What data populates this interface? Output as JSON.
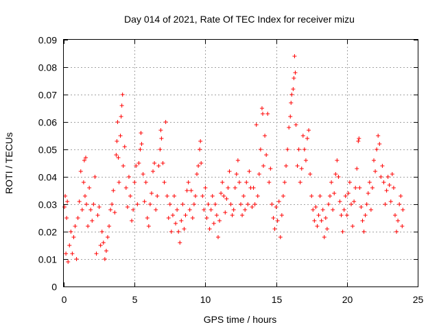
{
  "chart_data": {
    "type": "scatter",
    "title": "Day 014 of 2021, Rate Of TEC Index for receiver mizu",
    "xlabel": "GPS time / hours",
    "ylabel": "ROTI / TECUs",
    "xlim": [
      0,
      25
    ],
    "ylim": [
      0,
      0.09
    ],
    "xticks": [
      0,
      5,
      10,
      15,
      20,
      25
    ],
    "xtick_labels": [
      "0",
      "5",
      "10",
      "15",
      "20",
      "25"
    ],
    "yticks": [
      0,
      0.01,
      0.02,
      0.03,
      0.04,
      0.05,
      0.06,
      0.07,
      0.08,
      0.09
    ],
    "ytick_labels": [
      "0",
      "0.01",
      "0.02",
      "0.03",
      "0.04",
      "0.05",
      "0.06",
      "0.07",
      "0.08",
      "0.09"
    ],
    "grid": true,
    "marker": "plus",
    "color": "#ff0000",
    "series": [
      {
        "points": [
          [
            0.05,
            0.029
          ],
          [
            0.1,
            0.033
          ],
          [
            0.15,
            0.012
          ],
          [
            0.2,
            0.025
          ],
          [
            0.25,
            0.031
          ],
          [
            0.3,
            0.009
          ],
          [
            0.4,
            0.015
          ],
          [
            0.5,
            0.02
          ],
          [
            0.6,
            0.012
          ],
          [
            0.7,
            0.018
          ],
          [
            0.8,
            0.022
          ],
          [
            0.9,
            0.01
          ],
          [
            1.0,
            0.025
          ],
          [
            1.1,
            0.031
          ],
          [
            1.2,
            0.042
          ],
          [
            1.3,
            0.028
          ],
          [
            1.4,
            0.038
          ],
          [
            1.45,
            0.046
          ],
          [
            1.5,
            0.033
          ],
          [
            1.55,
            0.047
          ],
          [
            1.6,
            0.03
          ],
          [
            1.7,
            0.022
          ],
          [
            1.8,
            0.036
          ],
          [
            1.9,
            0.028
          ],
          [
            2.0,
            0.024
          ],
          [
            2.1,
            0.03
          ],
          [
            2.2,
            0.04
          ],
          [
            2.3,
            0.012
          ],
          [
            2.4,
            0.026
          ],
          [
            2.5,
            0.029
          ],
          [
            2.6,
            0.015
          ],
          [
            2.7,
            0.02
          ],
          [
            2.8,
            0.016
          ],
          [
            2.9,
            0.01
          ],
          [
            3.0,
            0.013
          ],
          [
            3.1,
            0.018
          ],
          [
            3.2,
            0.022
          ],
          [
            3.3,
            0.028
          ],
          [
            3.4,
            0.03
          ],
          [
            3.5,
            0.035
          ],
          [
            3.6,
            0.027
          ],
          [
            3.7,
            0.048
          ],
          [
            3.75,
            0.053
          ],
          [
            3.8,
            0.06
          ],
          [
            3.85,
            0.047
          ],
          [
            3.9,
            0.038
          ],
          [
            4.0,
            0.055
          ],
          [
            4.05,
            0.062
          ],
          [
            4.1,
            0.066
          ],
          [
            4.15,
            0.07
          ],
          [
            4.2,
            0.044
          ],
          [
            4.3,
            0.051
          ],
          [
            4.4,
            0.036
          ],
          [
            4.5,
            0.029
          ],
          [
            4.6,
            0.04
          ],
          [
            4.7,
            0.033
          ],
          [
            4.8,
            0.024
          ],
          [
            4.9,
            0.028
          ],
          [
            5.0,
            0.038
          ],
          [
            5.1,
            0.044
          ],
          [
            5.2,
            0.03
          ],
          [
            5.3,
            0.045
          ],
          [
            5.4,
            0.05
          ],
          [
            5.45,
            0.056
          ],
          [
            5.5,
            0.052
          ],
          [
            5.6,
            0.041
          ],
          [
            5.7,
            0.031
          ],
          [
            5.8,
            0.038
          ],
          [
            5.9,
            0.025
          ],
          [
            6.0,
            0.022
          ],
          [
            6.1,
            0.03
          ],
          [
            6.2,
            0.034
          ],
          [
            6.3,
            0.042
          ],
          [
            6.4,
            0.045
          ],
          [
            6.5,
            0.028
          ],
          [
            6.6,
            0.033
          ],
          [
            6.7,
            0.044
          ],
          [
            6.8,
            0.05
          ],
          [
            6.85,
            0.057
          ],
          [
            6.9,
            0.054
          ],
          [
            7.0,
            0.045
          ],
          [
            7.1,
            0.038
          ],
          [
            7.2,
            0.06
          ],
          [
            7.3,
            0.033
          ],
          [
            7.4,
            0.025
          ],
          [
            7.5,
            0.03
          ],
          [
            7.6,
            0.02
          ],
          [
            7.7,
            0.026
          ],
          [
            7.8,
            0.033
          ],
          [
            7.9,
            0.023
          ],
          [
            8.0,
            0.028
          ],
          [
            8.1,
            0.02
          ],
          [
            8.2,
            0.016
          ],
          [
            8.3,
            0.024
          ],
          [
            8.4,
            0.03
          ],
          [
            8.5,
            0.021
          ],
          [
            8.6,
            0.026
          ],
          [
            8.7,
            0.035
          ],
          [
            8.8,
            0.038
          ],
          [
            8.9,
            0.028
          ],
          [
            9.0,
            0.035
          ],
          [
            9.1,
            0.025
          ],
          [
            9.2,
            0.03
          ],
          [
            9.3,
            0.033
          ],
          [
            9.4,
            0.041
          ],
          [
            9.5,
            0.044
          ],
          [
            9.6,
            0.05
          ],
          [
            9.65,
            0.053
          ],
          [
            9.7,
            0.045
          ],
          [
            9.8,
            0.033
          ],
          [
            9.9,
            0.028
          ],
          [
            10.0,
            0.036
          ],
          [
            10.1,
            0.025
          ],
          [
            10.2,
            0.03
          ],
          [
            10.3,
            0.021
          ],
          [
            10.4,
            0.028
          ],
          [
            10.5,
            0.033
          ],
          [
            10.6,
            0.023
          ],
          [
            10.7,
            0.03
          ],
          [
            10.8,
            0.026
          ],
          [
            10.9,
            0.018
          ],
          [
            11.0,
            0.024
          ],
          [
            11.1,
            0.034
          ],
          [
            11.2,
            0.038
          ],
          [
            11.3,
            0.033
          ],
          [
            11.4,
            0.027
          ],
          [
            11.5,
            0.032
          ],
          [
            11.6,
            0.036
          ],
          [
            11.7,
            0.042
          ],
          [
            11.8,
            0.03
          ],
          [
            11.9,
            0.026
          ],
          [
            12.0,
            0.028
          ],
          [
            12.1,
            0.036
          ],
          [
            12.2,
            0.041
          ],
          [
            12.3,
            0.046
          ],
          [
            12.4,
            0.038
          ],
          [
            12.5,
            0.03
          ],
          [
            12.6,
            0.026
          ],
          [
            12.7,
            0.033
          ],
          [
            12.8,
            0.028
          ],
          [
            12.9,
            0.038
          ],
          [
            13.0,
            0.03
          ],
          [
            13.1,
            0.042
          ],
          [
            13.2,
            0.036
          ],
          [
            13.3,
            0.029
          ],
          [
            13.4,
            0.036
          ],
          [
            13.5,
            0.03
          ],
          [
            13.6,
            0.059
          ],
          [
            13.7,
            0.033
          ],
          [
            13.8,
            0.041
          ],
          [
            13.9,
            0.05
          ],
          [
            14.0,
            0.065
          ],
          [
            14.05,
            0.063
          ],
          [
            14.1,
            0.044
          ],
          [
            14.2,
            0.055
          ],
          [
            14.3,
            0.048
          ],
          [
            14.4,
            0.063
          ],
          [
            14.5,
            0.038
          ],
          [
            14.6,
            0.043
          ],
          [
            14.7,
            0.03
          ],
          [
            14.8,
            0.025
          ],
          [
            14.9,
            0.021
          ],
          [
            15.0,
            0.029
          ],
          [
            15.1,
            0.024
          ],
          [
            15.2,
            0.031
          ],
          [
            15.3,
            0.018
          ],
          [
            15.4,
            0.026
          ],
          [
            15.5,
            0.033
          ],
          [
            15.6,
            0.038
          ],
          [
            15.7,
            0.044
          ],
          [
            15.8,
            0.05
          ],
          [
            15.9,
            0.058
          ],
          [
            16.0,
            0.062
          ],
          [
            16.05,
            0.067
          ],
          [
            16.1,
            0.07
          ],
          [
            16.2,
            0.072
          ],
          [
            16.25,
            0.076
          ],
          [
            16.3,
            0.084
          ],
          [
            16.35,
            0.078
          ],
          [
            16.4,
            0.059
          ],
          [
            16.5,
            0.044
          ],
          [
            16.6,
            0.05
          ],
          [
            16.7,
            0.038
          ],
          [
            16.8,
            0.043
          ],
          [
            16.9,
            0.055
          ],
          [
            17.0,
            0.05
          ],
          [
            17.1,
            0.046
          ],
          [
            17.2,
            0.054
          ],
          [
            17.3,
            0.057
          ],
          [
            17.4,
            0.041
          ],
          [
            17.5,
            0.033
          ],
          [
            17.6,
            0.028
          ],
          [
            17.7,
            0.024
          ],
          [
            17.8,
            0.029
          ],
          [
            17.9,
            0.022
          ],
          [
            18.0,
            0.026
          ],
          [
            18.1,
            0.033
          ],
          [
            18.2,
            0.024
          ],
          [
            18.3,
            0.028
          ],
          [
            18.4,
            0.018
          ],
          [
            18.5,
            0.025
          ],
          [
            18.6,
            0.021
          ],
          [
            18.7,
            0.03
          ],
          [
            18.8,
            0.033
          ],
          [
            18.9,
            0.038
          ],
          [
            19.0,
            0.028
          ],
          [
            19.1,
            0.034
          ],
          [
            19.2,
            0.041
          ],
          [
            19.3,
            0.046
          ],
          [
            19.4,
            0.04
          ],
          [
            19.5,
            0.031
          ],
          [
            19.6,
            0.026
          ],
          [
            19.7,
            0.02
          ],
          [
            19.8,
            0.028
          ],
          [
            19.9,
            0.033
          ],
          [
            20.0,
            0.026
          ],
          [
            20.1,
            0.034
          ],
          [
            20.2,
            0.038
          ],
          [
            20.3,
            0.03
          ],
          [
            20.4,
            0.022
          ],
          [
            20.5,
            0.031
          ],
          [
            20.6,
            0.036
          ],
          [
            20.7,
            0.043
          ],
          [
            20.8,
            0.053
          ],
          [
            20.85,
            0.054
          ],
          [
            20.9,
            0.036
          ],
          [
            21.0,
            0.029
          ],
          [
            21.1,
            0.024
          ],
          [
            21.2,
            0.02
          ],
          [
            21.3,
            0.026
          ],
          [
            21.4,
            0.03
          ],
          [
            21.5,
            0.034
          ],
          [
            21.6,
            0.038
          ],
          [
            21.7,
            0.028
          ],
          [
            21.8,
            0.036
          ],
          [
            21.9,
            0.046
          ],
          [
            22.0,
            0.042
          ],
          [
            22.1,
            0.05
          ],
          [
            22.2,
            0.055
          ],
          [
            22.3,
            0.052
          ],
          [
            22.4,
            0.04
          ],
          [
            22.5,
            0.044
          ],
          [
            22.6,
            0.038
          ],
          [
            22.7,
            0.03
          ],
          [
            22.8,
            0.035
          ],
          [
            22.9,
            0.04
          ],
          [
            23.0,
            0.037
          ],
          [
            23.1,
            0.031
          ],
          [
            23.2,
            0.041
          ],
          [
            23.3,
            0.036
          ],
          [
            23.4,
            0.026
          ],
          [
            23.5,
            0.02
          ],
          [
            23.6,
            0.024
          ],
          [
            23.7,
            0.03
          ],
          [
            23.8,
            0.033
          ],
          [
            23.9,
            0.022
          ],
          [
            23.95,
            0.028
          ]
        ]
      }
    ]
  }
}
